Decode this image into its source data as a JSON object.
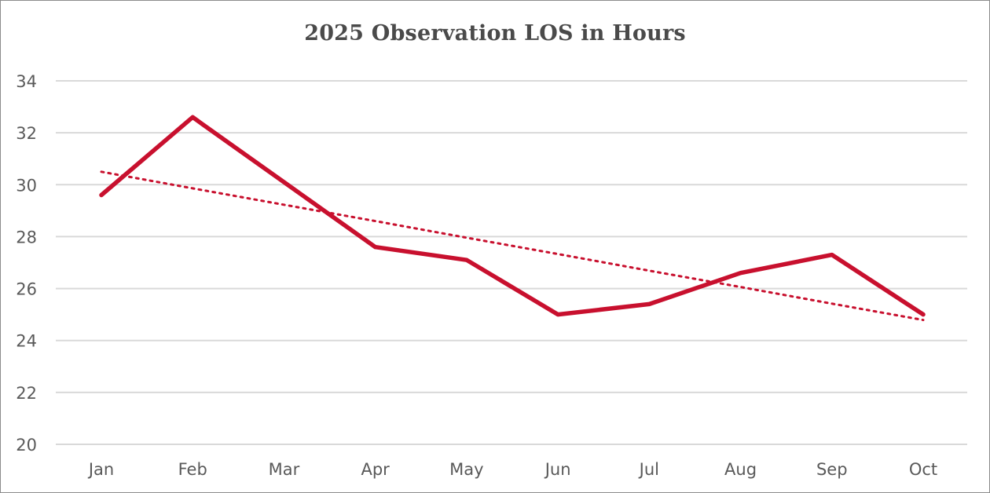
{
  "chart_data": {
    "type": "line",
    "title": "2025 Observation LOS in Hours",
    "xlabel": "",
    "ylabel": "",
    "categories": [
      "Jan",
      "Feb",
      "Mar",
      "Apr",
      "May",
      "Jun",
      "Jul",
      "Aug",
      "Sep",
      "Oct"
    ],
    "series": [
      {
        "values": [
          29.6,
          32.6,
          30.1,
          27.6,
          27.1,
          25.0,
          25.4,
          26.6,
          27.3,
          25.0
        ],
        "color": "#c8102e",
        "style": "solid"
      },
      {
        "values": [
          30.5,
          29.86,
          29.23,
          28.6,
          27.96,
          27.33,
          26.69,
          26.06,
          25.42,
          24.79
        ],
        "color": "#c8102e",
        "style": "dotted",
        "kind": "linear trendline"
      }
    ],
    "ylim": [
      20,
      34
    ],
    "yticks": [
      "20",
      "22",
      "24",
      "26",
      "28",
      "30",
      "32",
      "34"
    ],
    "grid": true,
    "legend": "none",
    "colors": {
      "gridline": "#d9d9d9",
      "tick_text": "#595959",
      "title_text": "#4a4a4a"
    }
  }
}
